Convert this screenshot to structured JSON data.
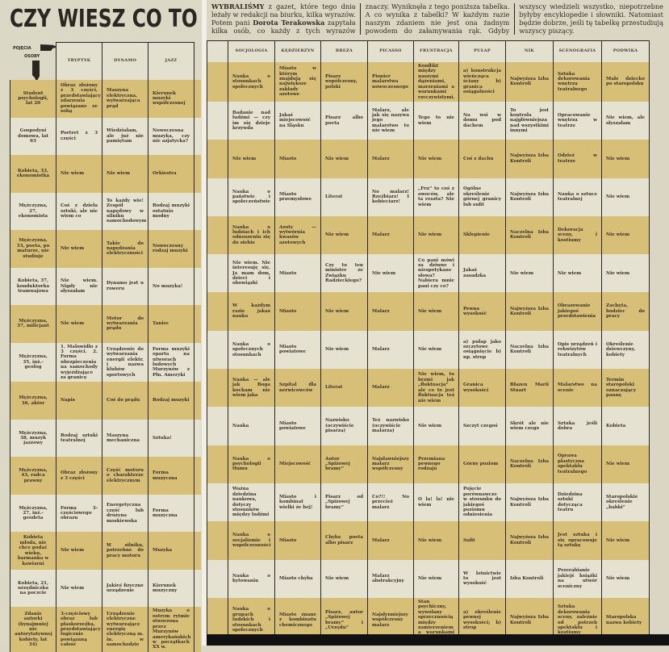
{
  "title": "CZY WIESZ CO TO JEST...",
  "corner": {
    "concepts": "POJĘCIA",
    "persons": "OSOBY"
  },
  "intro": {
    "lead": "WYBRALIŚMY",
    "part1": " z gazet, które tego dnia leżały w redakcji na biurku, kilka wyrazów. Potem pani ",
    "author": "Dorota Terakowska",
    "part2": " zapytała kilka osób, co każdy z tych wyrazów znaczy. Wyniknęła z tego poniższa tabelka. A co wynika z tabelki? W każdym razie naszym zdaniem nie jest ona żadnym powodem do załamywania rąk. Gdyby wszyscy wiedzieli wszystko, niepotrzebne byłyby encyklopedie i słowniki. Natomiast będzie dobrze, jeśli tę tabelkę przestudiują wszyscy piszący."
  },
  "persons": [
    "Student psychologii, lat 20",
    "Gospodyni domowa, lat 63",
    "Kobieta, 33, ekonomistka",
    "Mężczyzna, 27, ekonomista",
    "Mężczyzna, 33, poeta, po maturze, nie studiuje",
    "Kobieta, 37, konduktorka tramwajowa",
    "Mężczyzna, 37, milicjant",
    "Mężczyzna, 35, inż.-geolog",
    "Mężczyzna, 36, aktor",
    "Mężczyzna, 38, muzyk jazzowy",
    "Mężczyzna, 43, radca prawny",
    "Mężczyzna, 27, inż.-geodeta",
    "Kobieta młoda, nie chce podać wieku, barmanka w kawiarni",
    "Kobieta, 21, urzędniczka na poczcie",
    "Zdanie autorki (bynajmniej nie autorytatywnej kobiety, lat 34)"
  ],
  "left_table": {
    "columns": [
      "TRYPTYK",
      "DYNAMO",
      "JAZZ"
    ],
    "rows": [
      [
        "Obraz złożony z 3 części, przedstawiający zdarzenia powiązane ze sobą",
        "Maszyna elektryczna, wytwarzająca prąd",
        "Kierunek muzyki współczesnej"
      ],
      [
        "Portret z 3 części",
        "Wiedziałam, ale już nie pamiętam",
        "Nowoczesna muzyka, czy nie azjatycka?"
      ],
      [
        "Nie wiem",
        "Nie wiem",
        "Orkiestra"
      ],
      [
        "Coś z dzieła sztuki, ale nie wiem co",
        "To każdy wie! Zespół napędowy w silniku samochodowym",
        "Rodzaj muzyki ostatnio modny"
      ],
      [
        "Nie wiem",
        "Takie do napędzania elektryczności",
        "Nowoczesny rodzaj muzyki"
      ],
      [
        "Nie wiem. Nigdy nie słyszałam",
        "Dynamo jest u roweru",
        "No muzyka!"
      ],
      [
        "Nie wiem",
        "Motor do wytwarzania prądu",
        "Taniec"
      ],
      [
        "1. Malowidło z 3 części. 2. Forma ubezpieczenia na samochody wyjeżdżające za granicę",
        "Urządzenie do wytwarzania energii elektr. i nazwa klubów sportowych",
        "Forma muzyki oparta na utworach ludowych Murzynów z Płn. Ameryki"
      ],
      [
        "Napis",
        "Coś do prądu",
        "Rodzaj muzyki"
      ],
      [
        "Rodzaj sztuki teatralnej",
        "Maszyna mechaniczna",
        "Sztuka!"
      ],
      [
        "Obraz złożony z 3 części",
        "Część motoru o charakterze elektrycznym",
        "Forma muzyczna"
      ],
      [
        "Forma 3-częściowego obrazu",
        "Energetyczna część lub drużyna moskiewska",
        "Forma muzyczna"
      ],
      [
        "Nie wiem",
        "W silniku, potrzebne do pracy motoru",
        "Muzyka"
      ],
      [
        "Nie wiem",
        "Jakieś fizyczne urządzenie",
        "Kierunek muzyczny"
      ],
      [
        "3-częściowy obraz lub płaskorzeźba, przedstawiający logicznie powiązaną całość",
        "Urządzenie elektryczne wytwarzające energię elektryczną m. in. w samochodzie",
        "Muzyka o ostrym rytmie stworzona przez Murzynów amerykańskich w początkach XX w."
      ]
    ]
  },
  "right_table": {
    "columns": [
      "SOCJOLOGIA",
      "KĘDZIERZYN",
      "BREZA",
      "PICASSO",
      "FRUSTRACJA",
      "PUŁAP",
      "NIK",
      "SCENOGRAFIA",
      "PODWIKA"
    ],
    "rows": [
      [
        "Nauka o stosunkach społecznych",
        "Miasto w którym znajdują się największe zakłady azotowe",
        "Pisarz współczesny, polski",
        "Pionier malarstwa nowoczesnego",
        "Konflikt między naszymi dążeniami, marzeniami a warunkami rzeczywistymi.",
        "a) konstrukcja wieńcząca ściany b) granica osiągalności",
        "Najwyższa Izba Kontroli",
        "Sztuka dekorowania wnętrza teatralnego",
        "Małe dziecko po staropolsku"
      ],
      [
        "Badanie nad ludźmi — czy im się dzieje krzywda",
        "Jakaś miejscowość na Śląsku",
        "Pisarz albo poeta",
        "Malarz, ale jak się nazywa jego malarstwo to nie wiem",
        "Tego to nie wiem",
        "Na wsi w domu pod dachem",
        "To jest kontrola najgłówniejsza nad wszystkimi innymi",
        "Opracowanie wnętrza w teatrze",
        "Nie wiem, ale słyszałam"
      ],
      [
        "Nie wiem",
        "Miasto",
        "Nie wiem",
        "Malarz",
        "Nie wiem",
        "Coś z dachu",
        "Najwyższa Izba Kontroli",
        "Odzież w teatrze",
        "Nie wiem"
      ],
      [
        "Nauka o państwie i społeczeństwie",
        "Miasto przemysłowe",
        "Literat",
        "No malarz! Rzeźbiarz! I kobieciarz!",
        "„Fru” to coś z owoców, ale ta reszta? Nie wiem",
        "Ogólne określenie górnej granicy lub sufit",
        "Najwyższa Izba Kontroli",
        "Nauka o sztuce teatralnej",
        "Nie wiem"
      ],
      [
        "Nauka o ludziach i ich odnoszeniu się do siebie",
        "Azoty — wytwórnia kwasów azotowych",
        "Nie wiem",
        "Malarz",
        "Nie wiem",
        "Sklepienie",
        "Naczelna Izba Kontroli",
        "Dekoracja sceny, i kostiumy",
        "Nie wiem"
      ],
      [
        "Nie wiem. Nie interesuję się. Ja mam dom, dzieci i obowiązki",
        "Miasto",
        "Czy to ten minister ze Związku Radzieckiego?",
        "Nie wiem",
        "Co pani mówi za dziwne i niespotykane słowa? Nabiera mnie pani czy co?",
        "Jakaś zasadzka",
        "Nie wiem",
        "Nie wiem",
        "Nie wiem"
      ],
      [
        "W każdym razie jakaś nauka",
        "Miasto",
        "Nie wiem",
        "Malarz",
        "Nie wiem",
        "Pewna wysokość",
        "Najwyższa Izba Kontroli",
        "Obrazowanie jakiegoś przedstawienia",
        "Zachęta, bodziec do pracy"
      ],
      [
        "Nauka o społecznych stosunkach",
        "Miasto powiatowe",
        "Nie wiem",
        "Malarz",
        "Nie wiem",
        "a) pułap jako szczytowe osiągnięcie b) np. strop",
        "Naczelna Izba Kontroli",
        "Opis urządzeń i rekwizytów teatralnych",
        "Określenie dziewczyny, kobiety"
      ],
      [
        "Nauka — ale jak Boga kocham nie wiem jaka",
        "Szpital dla nerwicowców",
        "Literat",
        "Malarz",
        "Nie wiem, to brzmi jak „fluktuacja” ale co to jest fluktuacja też nie wiem",
        "Granica wysokości",
        "Błazen Marii Stuart",
        "Malarstwo na scenie",
        "Termin staropolski oznaczający pannę"
      ],
      [
        "Nauka",
        "Miasto powiatowe",
        "Nazwisko (oczywiście pisarza)",
        "Też nazwisko (oczywiście malarza)",
        "Nie wiem",
        "Szczyt czegoś",
        "Skrót ale nie wiem czego",
        "Sztuka jeśli dobra",
        "Kobieta"
      ],
      [
        "Nauka o psychologii tłumu",
        "Miejscowość",
        "Autor „Spiżowej bramy”",
        "Najsławniejszy malarz współczesny",
        "Przemiana pewnego rodzaju",
        "Górny poziom",
        "Naczelna Izba Kontroli",
        "Oprawa plastyczna spektaklu teatralnego",
        "Nie wiem"
      ],
      [
        "Ważna dziedzina naukowa, dotyczy stosunków między ludźmi",
        "Miasto i kombinat wielki że hej!",
        "Pisarz od „Spiżowej bramy”",
        "Co?!! No przecież malarz",
        "O la! la! nie wiem",
        "Pojęcie porównawcze w stosunku do jakiegoś poziomu odniesienia",
        "Najwyższa Izba Kontroli",
        "Dziedzina sztuki dotycząca teatru",
        "Staropolskie określenie „babki”"
      ],
      [
        "Nauka o socjalizmie i współczesności",
        "Miasto",
        "Chyba poeta albo pisarz",
        "Malarz",
        "Nie wiem",
        "Sufit",
        "Najwyższa Izba Kontroli",
        "Jest sztuka i się opracowuje tą sztukę",
        "Nie wiem"
      ],
      [
        "Nauka o bytowaniu",
        "Miasto chyba",
        "Nie wiem",
        "Malarz abstrakcyjny",
        "Nie wiem",
        "W lotnictwie to jest wysokość",
        "Izba Kontroli",
        "Przerabianie jakiejś książki na utwór sceniczny",
        "Nie wiem"
      ],
      [
        "Nauka o grupach ludzkich i stosunkach społecznych",
        "Miasto znane z kombinatu chemicznego",
        "Pisarz, autor „Spiżowej bramy” i „Urzędu”",
        "Najsłynniejszy współczesny malarz",
        "Stan psychiczny, wywołany sprzecznością między zamierzeniem a warunkami rzeczywistości",
        "a) określenie pewnej wysokości; b) strop",
        "Najwyższa Izba Kontroli",
        "Sztuka dekorowania sceny, zależnie od potrzeb spektaklu i kostiumy",
        "Staropolska nazwa kobiety"
      ]
    ]
  },
  "colors": {
    "gold_row": "#d8bf78",
    "light_row": "#e6e2d2",
    "ink": "#2a2520",
    "paper": "#dcd7c4"
  }
}
